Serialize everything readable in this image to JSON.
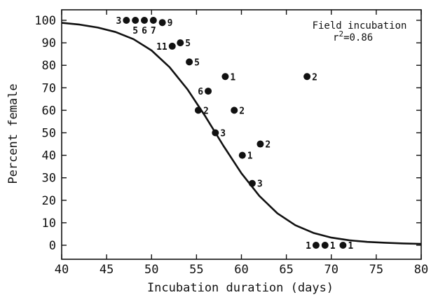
{
  "chart_data": {
    "type": "scatter",
    "xlabel": "Incubation duration (days)",
    "ylabel": "Percent female",
    "annotation_title": "Field incubation",
    "annotation_r_prefix": "r",
    "annotation_r_sup": "2",
    "annotation_r_value": "=0.86",
    "xlim": [
      40,
      80
    ],
    "ylim": [
      0,
      100
    ],
    "x_ticks": [
      40,
      45,
      50,
      55,
      60,
      65,
      70,
      75,
      80
    ],
    "y_ticks": [
      0,
      10,
      20,
      30,
      40,
      50,
      60,
      70,
      80,
      90,
      100
    ],
    "grid": false,
    "points": [
      {
        "x": 47.2,
        "y": 100,
        "n": "3",
        "pos": "left"
      },
      {
        "x": 48.2,
        "y": 100,
        "n": "5",
        "pos": "below"
      },
      {
        "x": 49.2,
        "y": 100,
        "n": "6",
        "pos": "below"
      },
      {
        "x": 50.2,
        "y": 100,
        "n": "7",
        "pos": "below"
      },
      {
        "x": 51.2,
        "y": 99,
        "n": "9",
        "pos": "right"
      },
      {
        "x": 52.3,
        "y": 88.5,
        "n": "11",
        "pos": "left"
      },
      {
        "x": 53.2,
        "y": 90,
        "n": "5",
        "pos": "right"
      },
      {
        "x": 54.2,
        "y": 81.5,
        "n": "5",
        "pos": "right"
      },
      {
        "x": 56.3,
        "y": 68.5,
        "n": "6",
        "pos": "left"
      },
      {
        "x": 58.2,
        "y": 75,
        "n": "1",
        "pos": "right"
      },
      {
        "x": 55.2,
        "y": 60,
        "n": "2",
        "pos": "right"
      },
      {
        "x": 59.2,
        "y": 60,
        "n": "2",
        "pos": "right"
      },
      {
        "x": 57.1,
        "y": 50,
        "n": "3",
        "pos": "right"
      },
      {
        "x": 60.1,
        "y": 40,
        "n": "1",
        "pos": "right"
      },
      {
        "x": 62.1,
        "y": 45,
        "n": "2",
        "pos": "right"
      },
      {
        "x": 61.2,
        "y": 27.5,
        "n": "3",
        "pos": "right"
      },
      {
        "x": 67.3,
        "y": 75,
        "n": "2",
        "pos": "right"
      },
      {
        "x": 68.3,
        "y": 0,
        "n": "1",
        "pos": "left"
      },
      {
        "x": 69.3,
        "y": 0,
        "n": "1",
        "pos": "right"
      },
      {
        "x": 71.3,
        "y": 0,
        "n": "1",
        "pos": "right"
      }
    ],
    "series": [
      {
        "type": "line",
        "x": [
          40,
          42,
          44,
          46,
          48,
          50,
          52,
          54,
          56,
          58,
          60,
          62,
          64,
          66,
          68,
          70,
          72,
          74,
          76,
          78,
          80
        ],
        "y": [
          98.9,
          98.1,
          96.8,
          94.8,
          91.6,
          86.6,
          79.2,
          69.3,
          57.2,
          44.2,
          32.0,
          21.9,
          14.2,
          8.9,
          5.5,
          3.4,
          2.2,
          1.5,
          1.1,
          0.8,
          0.6
        ]
      }
    ]
  }
}
